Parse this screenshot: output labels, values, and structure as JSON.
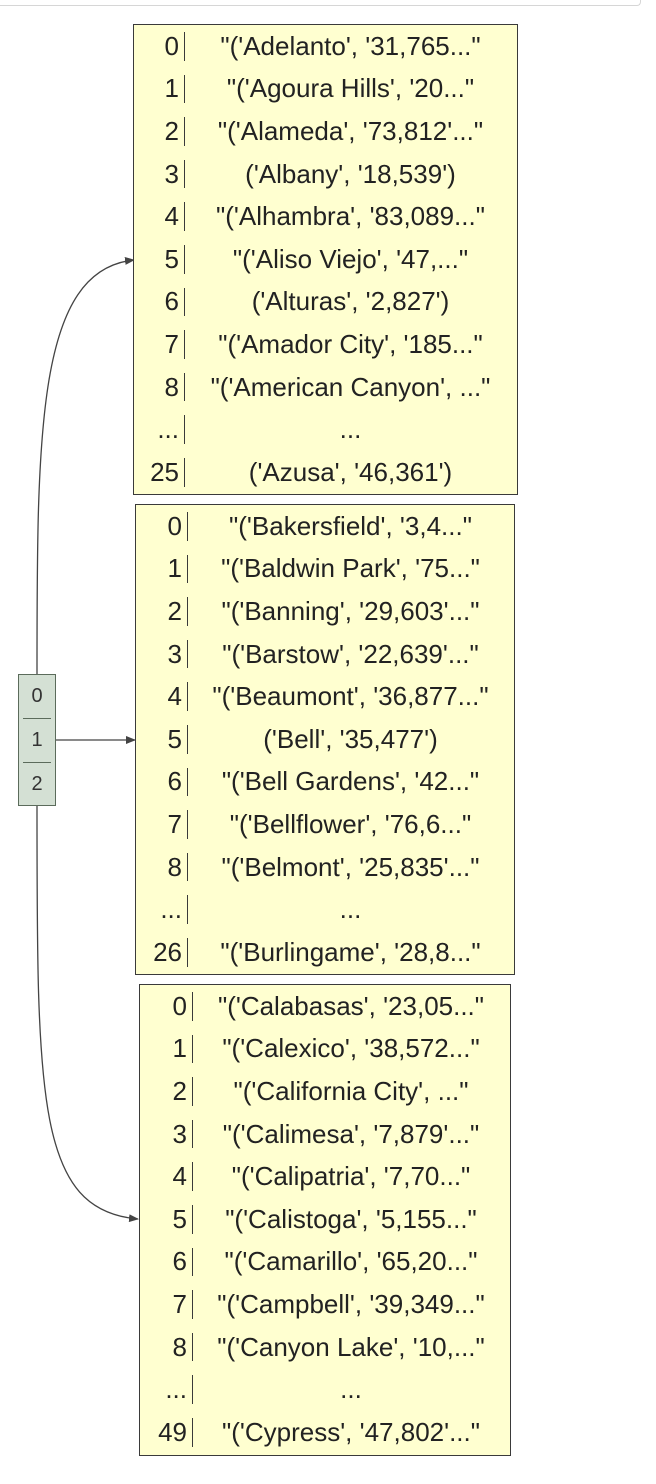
{
  "outer_list": {
    "indices": [
      "0",
      "1",
      "2"
    ]
  },
  "blocks": [
    {
      "rows": [
        {
          "idx": "0",
          "val": "\"('Adelanto', '31,765...\""
        },
        {
          "idx": "1",
          "val": "\"('Agoura Hills', '20...\""
        },
        {
          "idx": "2",
          "val": "\"('Alameda', '73,812'...\""
        },
        {
          "idx": "3",
          "val": "('Albany', '18,539')"
        },
        {
          "idx": "4",
          "val": "\"('Alhambra', '83,089...\""
        },
        {
          "idx": "5",
          "val": "\"('Aliso Viejo', '47,...\""
        },
        {
          "idx": "6",
          "val": "('Alturas', '2,827')"
        },
        {
          "idx": "7",
          "val": "\"('Amador City', '185...\""
        },
        {
          "idx": "8",
          "val": "\"('American Canyon', ...\""
        },
        {
          "idx": "...",
          "val": "..."
        },
        {
          "idx": "25",
          "val": "('Azusa', '46,361')"
        }
      ]
    },
    {
      "rows": [
        {
          "idx": "0",
          "val": "\"('Bakersfield', '3,4...\""
        },
        {
          "idx": "1",
          "val": "\"('Baldwin Park', '75...\""
        },
        {
          "idx": "2",
          "val": "\"('Banning', '29,603'...\""
        },
        {
          "idx": "3",
          "val": "\"('Barstow', '22,639'...\""
        },
        {
          "idx": "4",
          "val": "\"('Beaumont', '36,877...\""
        },
        {
          "idx": "5",
          "val": "('Bell', '35,477')"
        },
        {
          "idx": "6",
          "val": "\"('Bell Gardens', '42...\""
        },
        {
          "idx": "7",
          "val": "\"('Bellflower', '76,6...\""
        },
        {
          "idx": "8",
          "val": "\"('Belmont', '25,835'...\""
        },
        {
          "idx": "...",
          "val": "..."
        },
        {
          "idx": "26",
          "val": "\"('Burlingame', '28,8...\""
        }
      ]
    },
    {
      "rows": [
        {
          "idx": "0",
          "val": "\"('Calabasas', '23,05...\""
        },
        {
          "idx": "1",
          "val": "\"('Calexico', '38,572...\""
        },
        {
          "idx": "2",
          "val": "\"('California City', ...\""
        },
        {
          "idx": "3",
          "val": "\"('Calimesa', '7,879'...\""
        },
        {
          "idx": "4",
          "val": "\"('Calipatria', '7,70...\""
        },
        {
          "idx": "5",
          "val": "\"('Calistoga', '5,155...\""
        },
        {
          "idx": "6",
          "val": "\"('Camarillo', '65,20...\""
        },
        {
          "idx": "7",
          "val": "\"('Campbell', '39,349...\""
        },
        {
          "idx": "8",
          "val": "\"('Canyon Lake', '10,...\""
        },
        {
          "idx": "...",
          "val": "..."
        },
        {
          "idx": "49",
          "val": "\"('Cypress', '47,802'...\""
        }
      ]
    }
  ],
  "colors": {
    "block_fill": "#ffffd0",
    "outer_fill": "#d4e0d4",
    "edge": "#444444"
  }
}
